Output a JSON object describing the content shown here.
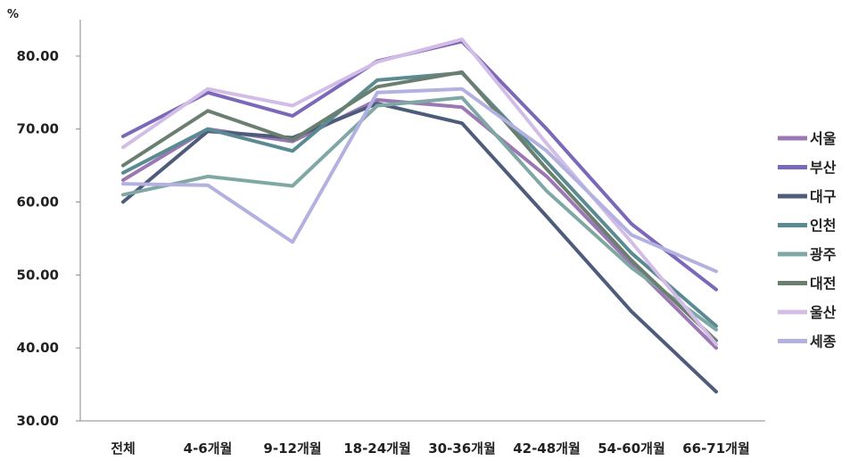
{
  "chart_data": {
    "type": "line",
    "ylabel": "%",
    "ylim": [
      30,
      85
    ],
    "yticks": [
      "30.00",
      "40.00",
      "50.00",
      "60.00",
      "70.00",
      "80.00"
    ],
    "categories": [
      "전체",
      "4-6개월",
      "9-12개월",
      "18-24개월",
      "30-36개월",
      "42-48개월",
      "54-60개월",
      "66-71개월"
    ],
    "legend_position": "right",
    "series": [
      {
        "name": "서울",
        "color": "#9B77B4",
        "values": [
          63.0,
          70.0,
          68.3,
          74.0,
          73.0,
          63.5,
          51.5,
          40.0
        ]
      },
      {
        "name": "부산",
        "color": "#7B68B8",
        "values": [
          69.0,
          75.0,
          71.8,
          79.3,
          82.0,
          70.0,
          57.0,
          48.0
        ]
      },
      {
        "name": "대구",
        "color": "#4E5C7C",
        "values": [
          60.0,
          69.7,
          68.8,
          73.5,
          70.8,
          58.0,
          45.0,
          34.0
        ]
      },
      {
        "name": "인천",
        "color": "#5A8A92",
        "values": [
          64.0,
          70.0,
          67.0,
          76.7,
          77.7,
          65.5,
          53.0,
          43.0
        ]
      },
      {
        "name": "광주",
        "color": "#7FA8A4",
        "values": [
          61.0,
          63.5,
          62.2,
          73.2,
          74.3,
          61.5,
          51.0,
          42.5
        ]
      },
      {
        "name": "대전",
        "color": "#6A7F70",
        "values": [
          65.0,
          72.5,
          68.5,
          75.8,
          77.8,
          64.5,
          52.0,
          41.0
        ]
      },
      {
        "name": "울산",
        "color": "#D3BDE6",
        "values": [
          67.5,
          75.5,
          73.2,
          79.2,
          82.3,
          68.0,
          54.5,
          40.5
        ]
      },
      {
        "name": "세종",
        "color": "#B3B1E0",
        "values": [
          62.5,
          62.3,
          54.5,
          75.0,
          75.5,
          67.0,
          55.5,
          50.5
        ]
      }
    ]
  }
}
